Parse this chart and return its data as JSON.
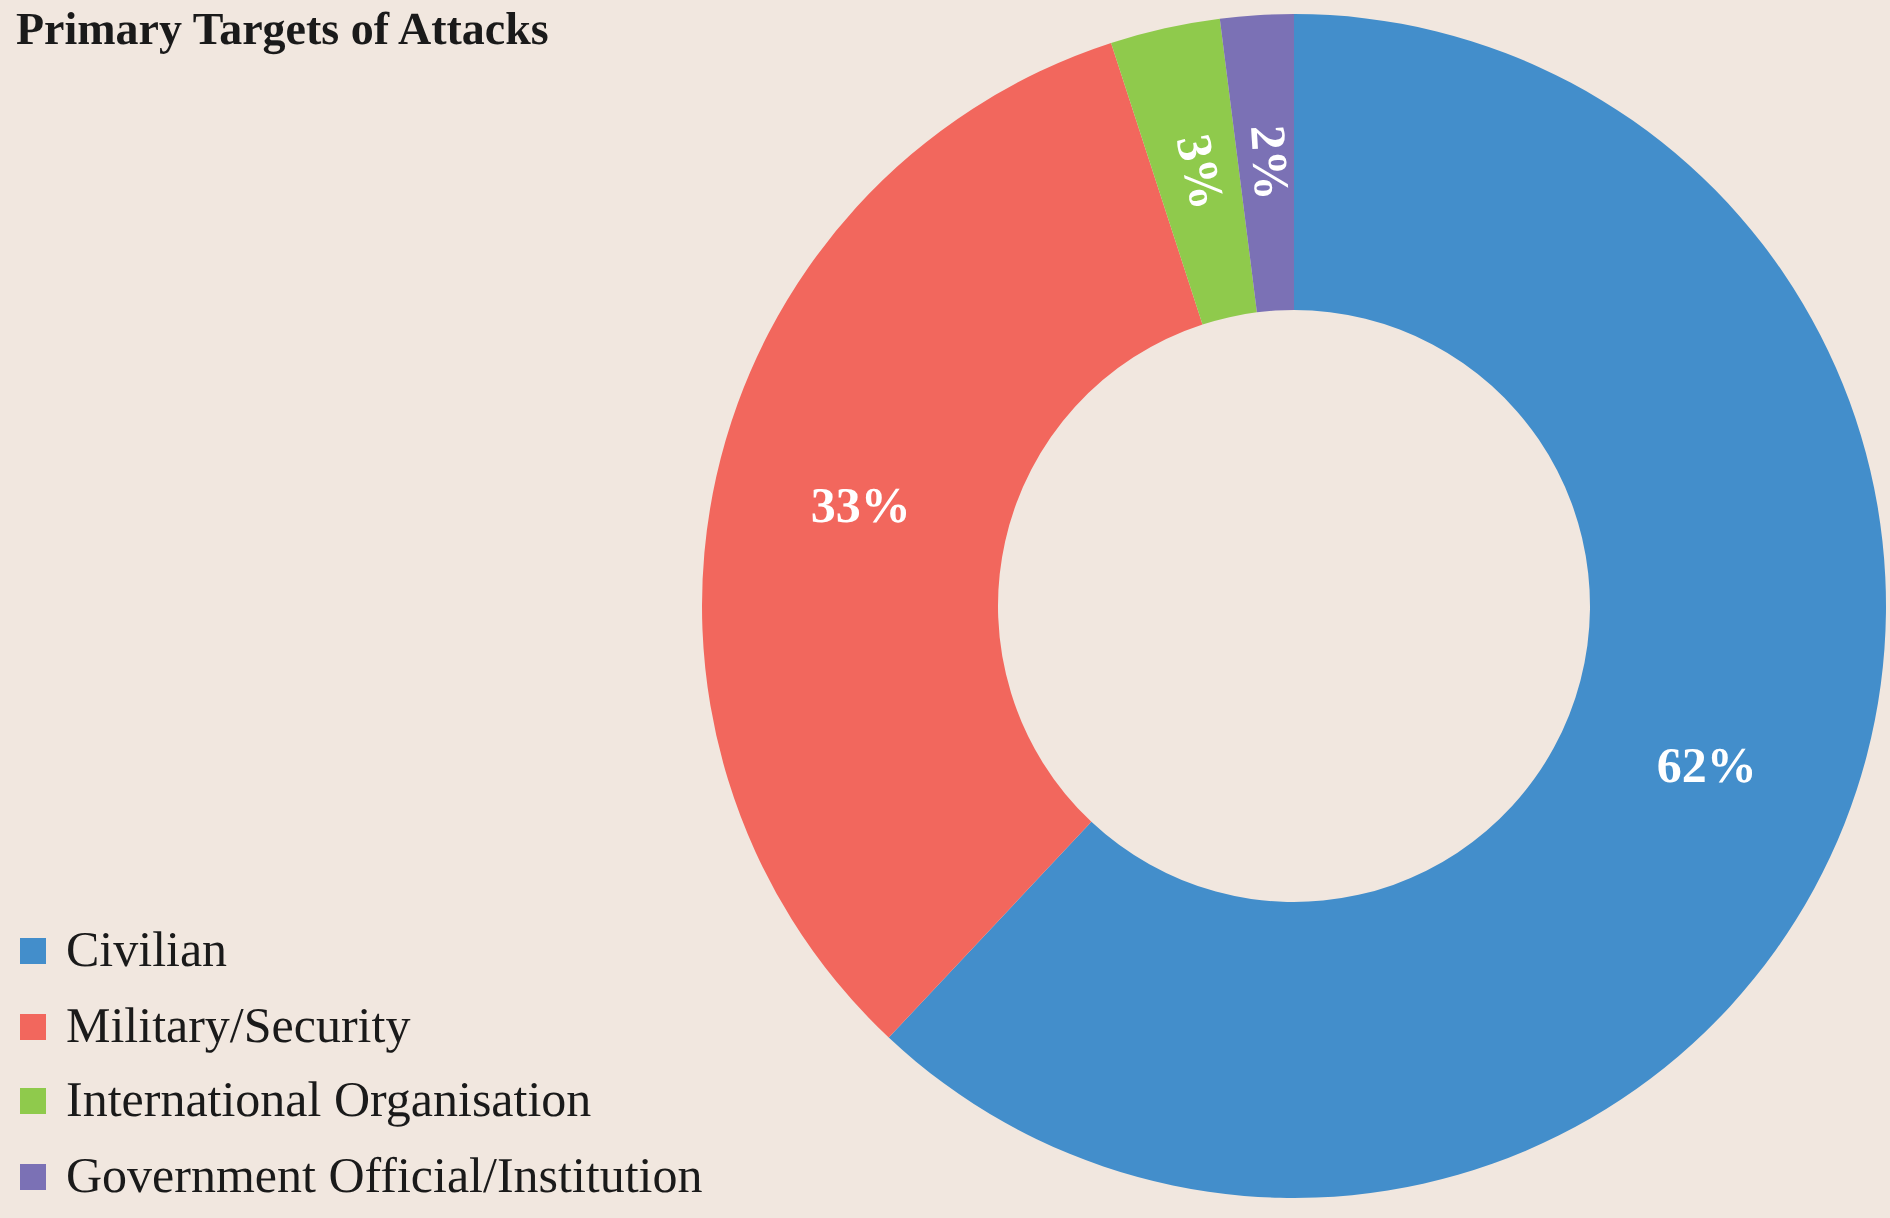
{
  "chart_data": {
    "type": "donut",
    "title": "Primary Targets of Attacks",
    "categories": [
      "Civilian",
      "Military/Security",
      "International Organisation",
      "Government Official/Institution"
    ],
    "values": [
      62,
      33,
      3,
      2
    ],
    "colors": [
      "#438ecb",
      "#f2675d",
      "#8fca4c",
      "#7b71b5"
    ],
    "value_labels": [
      "62%",
      "33%",
      "3%",
      "2%"
    ],
    "legend": "bottom left"
  }
}
